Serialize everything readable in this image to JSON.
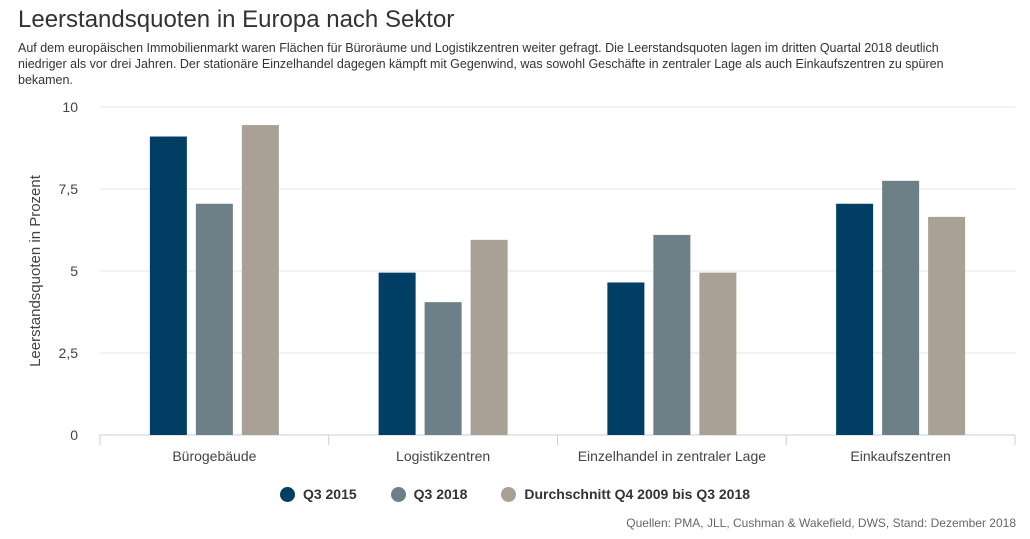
{
  "title": "Leerstandsquoten in Europa nach Sektor",
  "subtitle": "Auf dem europäischen Immobilienmarkt waren Flächen für Büroräume und Logistikzentren weiter gefragt. Die Leerstandsquoten lagen im dritten Quartal 2018 deutlich niedriger als vor drei Jahren. Der stationäre Einzelhandel dagegen kämpft mit Gegenwind, was sowohl Geschäfte in zentraler Lage als auch Einkaufszentren zu spüren bekamen.",
  "source": "Quellen: PMA, JLL, Cushman & Wakefield, DWS, Stand: Dezember 2018",
  "chart_data": {
    "type": "bar",
    "title": "Leerstandsquoten in Europa nach Sektor",
    "xlabel": "",
    "ylabel": "Leerstandsquoten in Prozent",
    "ylim": [
      0,
      10
    ],
    "yticks": [
      0,
      2.5,
      5,
      7.5,
      10
    ],
    "ytick_labels": [
      "0",
      "2,5",
      "5",
      "7,5",
      "10"
    ],
    "grid": true,
    "legend_position": "bottom",
    "categories": [
      "Bürogebäude",
      "Logistikzentren",
      "Einzelhandel in zentraler Lage",
      "Einkaufszentren"
    ],
    "series": [
      {
        "name": "Q3 2015",
        "color": "#003f63",
        "values": [
          9.1,
          4.95,
          4.65,
          7.05
        ]
      },
      {
        "name": "Q3 2018",
        "color": "#6e8087",
        "values": [
          7.05,
          4.05,
          6.1,
          7.75
        ]
      },
      {
        "name": "Durchschnitt Q4 2009 bis Q3 2018",
        "color": "#aaa196",
        "values": [
          9.45,
          5.95,
          4.95,
          6.65
        ]
      }
    ]
  }
}
